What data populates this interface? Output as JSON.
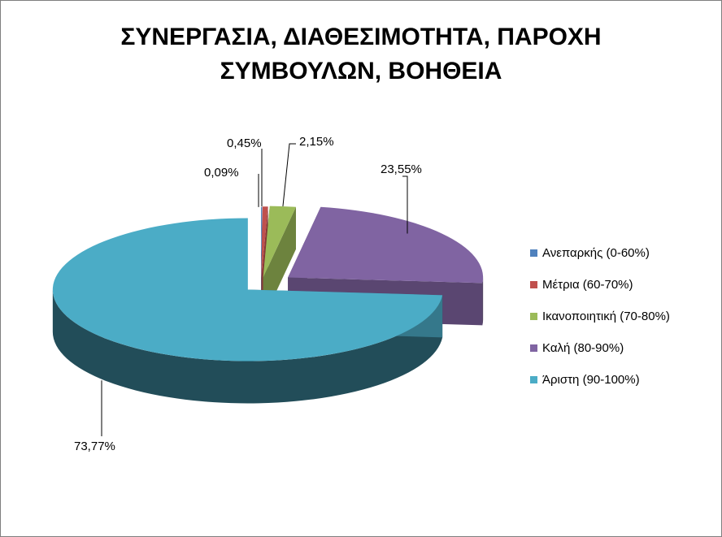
{
  "chart_data": {
    "type": "pie",
    "title_lines": [
      "ΣΥΝΕΡΓΑΣΙΑ, ΔΙΑΘΕΣΙΜΟΤΗΤΑ, ΠΑΡΟΧΗ",
      "ΣΥΜΒΟΥΛΩΝ, ΒΟΗΘΕΙΑ"
    ],
    "style": "3d-exploded",
    "legend_position": "right",
    "slices": [
      {
        "name": "Ανεπαρκής (0-60%)",
        "value": 0.09,
        "label": "0,09%",
        "color": "#4f81bd"
      },
      {
        "name": "Μέτρια (60-70%)",
        "value": 0.45,
        "label": "0,45%",
        "color": "#c0504d"
      },
      {
        "name": "Ικανοποιητική (70-80%)",
        "value": 2.15,
        "label": "2,15%",
        "color": "#9bbb59"
      },
      {
        "name": "Καλή (80-90%)",
        "value": 23.55,
        "label": "23,55%",
        "color": "#8064a2"
      },
      {
        "name": "Άριστη (90-100%)",
        "value": 73.77,
        "label": "73,77%",
        "color": "#4bacc6"
      }
    ]
  }
}
